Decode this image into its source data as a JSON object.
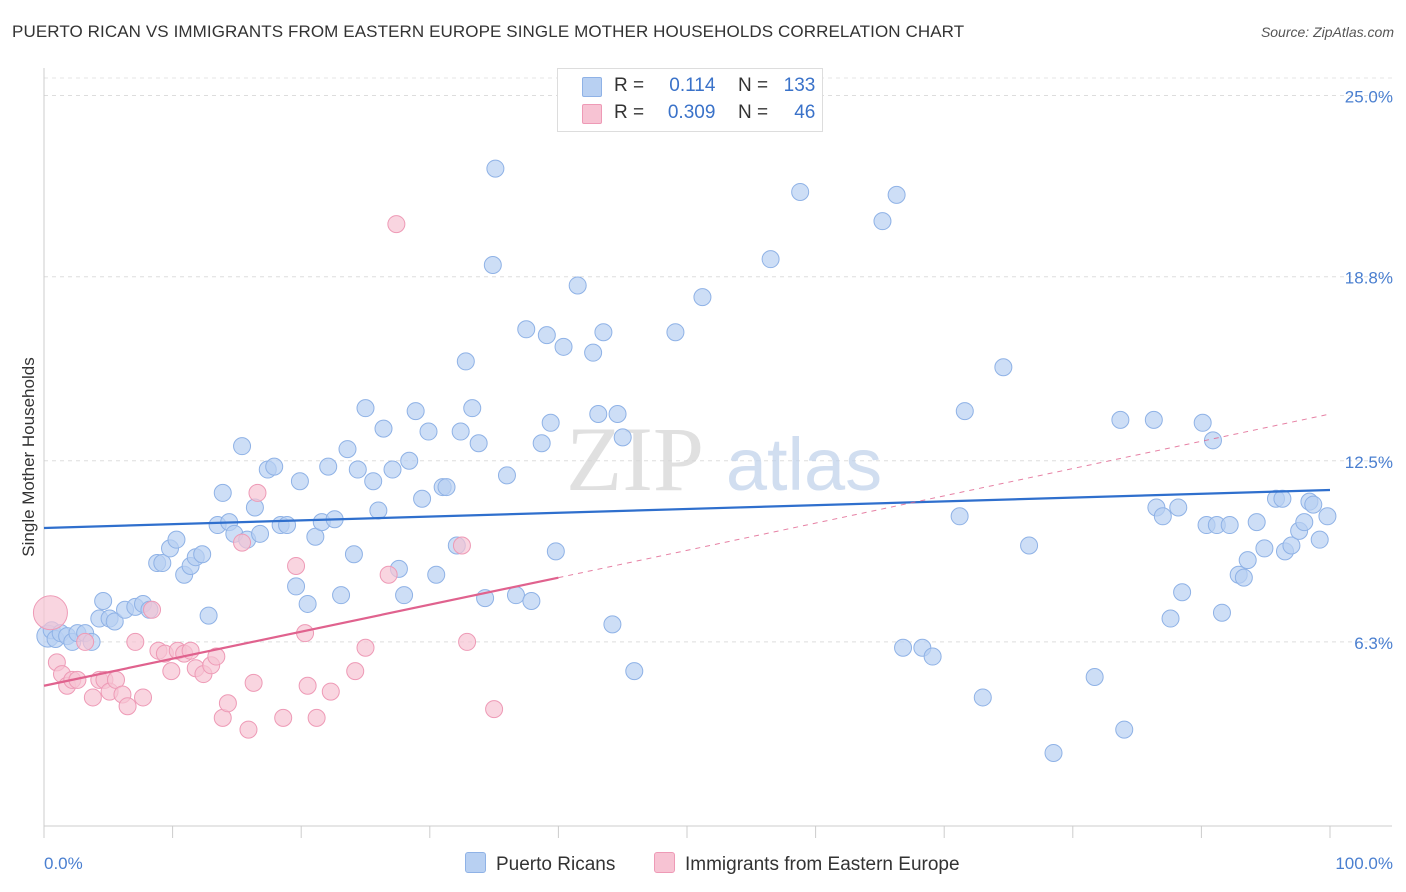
{
  "title": "PUERTO RICAN VS IMMIGRANTS FROM EASTERN EUROPE SINGLE MOTHER HOUSEHOLDS CORRELATION CHART",
  "source": "Source: ZipAtlas.com",
  "watermark": {
    "zip": "ZIP",
    "atlas": "atlas"
  },
  "legend": {
    "r_label": "R =",
    "n_label": "N =",
    "rows": [
      {
        "r": "0.114",
        "n": "133"
      },
      {
        "r": "0.309",
        "n": "46"
      }
    ]
  },
  "colors": {
    "blue_fill": "#b8d0f2",
    "blue_stroke": "#8fb2e6",
    "blue_line": "#2f6fcd",
    "pink_fill": "#f7c3d3",
    "pink_stroke": "#ee9ab6",
    "pink_line": "#e0628e"
  },
  "chart_data": {
    "type": "scatter",
    "title": "PUERTO RICAN VS IMMIGRANTS FROM EASTERN EUROPE SINGLE MOTHER HOUSEHOLDS CORRELATION CHART",
    "xlabel": "",
    "ylabel": "Single Mother Households",
    "xlim": [
      0,
      100
    ],
    "ylim": [
      0,
      25.6
    ],
    "x_tick_labels": [
      "0.0%",
      "100.0%"
    ],
    "y_ticks": [
      6.3,
      12.5,
      18.8,
      25.0
    ],
    "y_tick_labels": [
      "6.3%",
      "12.5%",
      "18.8%",
      "25.0%"
    ],
    "series": [
      {
        "name": "Puerto Ricans",
        "r": 0.114,
        "n": 133,
        "trend": {
          "x": [
            0,
            100
          ],
          "y": [
            10.2,
            11.5
          ]
        },
        "points": [
          [
            0.3,
            6.5
          ],
          [
            0.6,
            6.7
          ],
          [
            0.9,
            6.4
          ],
          [
            1.3,
            6.6
          ],
          [
            1.8,
            6.5
          ],
          [
            2.2,
            6.3
          ],
          [
            2.6,
            6.6
          ],
          [
            3.2,
            6.6
          ],
          [
            3.7,
            6.3
          ],
          [
            4.3,
            7.1
          ],
          [
            4.6,
            7.7
          ],
          [
            5.1,
            7.1
          ],
          [
            5.5,
            7.0
          ],
          [
            6.3,
            7.4
          ],
          [
            7.1,
            7.5
          ],
          [
            7.7,
            7.6
          ],
          [
            8.2,
            7.4
          ],
          [
            8.8,
            9.0
          ],
          [
            9.2,
            9.0
          ],
          [
            9.8,
            9.5
          ],
          [
            10.3,
            9.8
          ],
          [
            10.9,
            8.6
          ],
          [
            11.4,
            8.9
          ],
          [
            11.8,
            9.2
          ],
          [
            12.3,
            9.3
          ],
          [
            12.8,
            7.2
          ],
          [
            13.5,
            10.3
          ],
          [
            13.9,
            11.4
          ],
          [
            14.4,
            10.4
          ],
          [
            14.8,
            10.0
          ],
          [
            15.4,
            13.0
          ],
          [
            15.8,
            9.8
          ],
          [
            16.4,
            10.9
          ],
          [
            16.8,
            10.0
          ],
          [
            17.4,
            12.2
          ],
          [
            17.9,
            12.3
          ],
          [
            18.4,
            10.3
          ],
          [
            18.9,
            10.3
          ],
          [
            19.6,
            8.2
          ],
          [
            19.9,
            11.8
          ],
          [
            20.5,
            7.6
          ],
          [
            21.1,
            9.9
          ],
          [
            21.6,
            10.4
          ],
          [
            22.1,
            12.3
          ],
          [
            22.6,
            10.5
          ],
          [
            23.1,
            7.9
          ],
          [
            23.6,
            12.9
          ],
          [
            24.1,
            9.3
          ],
          [
            24.4,
            12.2
          ],
          [
            25.0,
            14.3
          ],
          [
            25.6,
            11.8
          ],
          [
            26.0,
            10.8
          ],
          [
            26.4,
            13.6
          ],
          [
            27.1,
            12.2
          ],
          [
            27.6,
            8.8
          ],
          [
            28.0,
            7.9
          ],
          [
            28.4,
            12.5
          ],
          [
            28.9,
            14.2
          ],
          [
            29.4,
            11.2
          ],
          [
            29.9,
            13.5
          ],
          [
            30.5,
            8.6
          ],
          [
            31.0,
            11.6
          ],
          [
            31.3,
            11.6
          ],
          [
            32.1,
            9.6
          ],
          [
            32.4,
            13.5
          ],
          [
            32.8,
            15.9
          ],
          [
            33.3,
            14.3
          ],
          [
            33.8,
            13.1
          ],
          [
            34.3,
            7.8
          ],
          [
            34.9,
            19.2
          ],
          [
            35.1,
            22.5
          ],
          [
            36.0,
            12.0
          ],
          [
            36.7,
            7.9
          ],
          [
            37.5,
            17.0
          ],
          [
            37.9,
            7.7
          ],
          [
            38.7,
            13.1
          ],
          [
            39.1,
            16.8
          ],
          [
            39.4,
            13.8
          ],
          [
            39.8,
            9.4
          ],
          [
            40.4,
            16.4
          ],
          [
            41.5,
            18.5
          ],
          [
            42.7,
            16.2
          ],
          [
            43.1,
            14.1
          ],
          [
            43.5,
            16.9
          ],
          [
            44.2,
            6.9
          ],
          [
            44.6,
            14.1
          ],
          [
            45.0,
            13.3
          ],
          [
            45.9,
            5.3
          ],
          [
            49.1,
            16.9
          ],
          [
            51.2,
            18.1
          ],
          [
            56.5,
            19.4
          ],
          [
            58.8,
            21.7
          ],
          [
            65.2,
            20.7
          ],
          [
            66.3,
            21.6
          ],
          [
            66.8,
            6.1
          ],
          [
            68.3,
            6.1
          ],
          [
            69.1,
            5.8
          ],
          [
            71.2,
            10.6
          ],
          [
            71.6,
            14.2
          ],
          [
            73.0,
            4.4
          ],
          [
            74.6,
            15.7
          ],
          [
            76.6,
            9.6
          ],
          [
            78.5,
            2.5
          ],
          [
            81.7,
            5.1
          ],
          [
            83.7,
            13.9
          ],
          [
            84.0,
            3.3
          ],
          [
            86.3,
            13.9
          ],
          [
            86.5,
            10.9
          ],
          [
            87.0,
            10.6
          ],
          [
            87.6,
            7.1
          ],
          [
            88.2,
            10.9
          ],
          [
            88.5,
            8.0
          ],
          [
            90.1,
            13.8
          ],
          [
            90.4,
            10.3
          ],
          [
            90.9,
            13.2
          ],
          [
            91.2,
            10.3
          ],
          [
            91.6,
            7.3
          ],
          [
            92.2,
            10.3
          ],
          [
            92.9,
            8.6
          ],
          [
            93.3,
            8.5
          ],
          [
            93.6,
            9.1
          ],
          [
            94.3,
            10.4
          ],
          [
            94.9,
            9.5
          ],
          [
            95.8,
            11.2
          ],
          [
            96.3,
            11.2
          ],
          [
            96.5,
            9.4
          ],
          [
            97.0,
            9.6
          ],
          [
            97.6,
            10.1
          ],
          [
            98.0,
            10.4
          ],
          [
            98.4,
            11.1
          ],
          [
            98.7,
            11.0
          ],
          [
            99.2,
            9.8
          ],
          [
            99.8,
            10.6
          ]
        ]
      },
      {
        "name": "Immigrants from Eastern Europe",
        "r": 0.309,
        "n": 46,
        "trend": {
          "x": [
            0,
            40
          ],
          "y": [
            4.8,
            8.5
          ]
        },
        "trend_extension": {
          "x": [
            40,
            100
          ],
          "y": [
            8.5,
            14.1
          ]
        },
        "points": [
          [
            0.5,
            7.3
          ],
          [
            1.0,
            5.6
          ],
          [
            1.4,
            5.2
          ],
          [
            1.8,
            4.8
          ],
          [
            2.2,
            5.0
          ],
          [
            2.6,
            5.0
          ],
          [
            3.2,
            6.3
          ],
          [
            3.8,
            4.4
          ],
          [
            4.3,
            5.0
          ],
          [
            4.7,
            5.0
          ],
          [
            5.1,
            4.6
          ],
          [
            5.6,
            5.0
          ],
          [
            6.1,
            4.5
          ],
          [
            6.5,
            4.1
          ],
          [
            7.1,
            6.3
          ],
          [
            7.7,
            4.4
          ],
          [
            8.4,
            7.4
          ],
          [
            8.9,
            6.0
          ],
          [
            9.4,
            5.9
          ],
          [
            9.9,
            5.3
          ],
          [
            10.4,
            6.0
          ],
          [
            10.9,
            5.9
          ],
          [
            11.4,
            6.0
          ],
          [
            11.8,
            5.4
          ],
          [
            12.4,
            5.2
          ],
          [
            13.0,
            5.5
          ],
          [
            13.4,
            5.8
          ],
          [
            13.9,
            3.7
          ],
          [
            14.3,
            4.2
          ],
          [
            15.4,
            9.7
          ],
          [
            15.9,
            3.3
          ],
          [
            16.3,
            4.9
          ],
          [
            16.6,
            11.4
          ],
          [
            18.6,
            3.7
          ],
          [
            19.6,
            8.9
          ],
          [
            20.3,
            6.6
          ],
          [
            20.5,
            4.8
          ],
          [
            21.2,
            3.7
          ],
          [
            22.3,
            4.6
          ],
          [
            24.2,
            5.3
          ],
          [
            25.0,
            6.1
          ],
          [
            26.8,
            8.6
          ],
          [
            27.4,
            20.6
          ],
          [
            32.5,
            9.6
          ],
          [
            32.9,
            6.3
          ],
          [
            35.0,
            4.0
          ]
        ]
      }
    ]
  },
  "bottom_legend": [
    "Puerto Ricans",
    "Immigrants from Eastern Europe"
  ]
}
